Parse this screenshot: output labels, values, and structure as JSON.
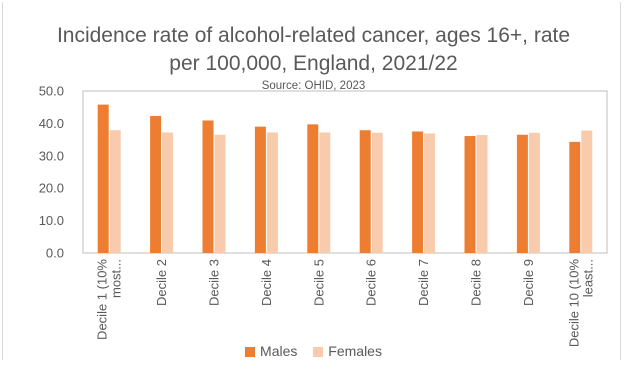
{
  "chart_data": {
    "type": "bar",
    "title_lines": [
      "Incidence rate of alcohol-related cancer, ages 16+, rate",
      "per 100,000, England, 2021/22"
    ],
    "subtitle": "Source: OHID, 2023",
    "categories": [
      [
        "Decile 1 (10%",
        "most..."
      ],
      [
        "Decile 2"
      ],
      [
        "Decile 3"
      ],
      [
        "Decile 4"
      ],
      [
        "Decile 5"
      ],
      [
        "Decile 6"
      ],
      [
        "Decile 7"
      ],
      [
        "Decile 8"
      ],
      [
        "Decile 9"
      ],
      [
        "Decile 10 (10%",
        "least..."
      ]
    ],
    "series": [
      {
        "name": "Males",
        "color": "#ed7d31",
        "values": [
          45.8,
          42.3,
          40.9,
          39.0,
          39.7,
          37.9,
          37.5,
          36.1,
          36.5,
          34.3
        ]
      },
      {
        "name": "Females",
        "color": "#f8cbad",
        "values": [
          37.9,
          37.2,
          36.5,
          37.2,
          37.2,
          37.1,
          36.9,
          36.4,
          37.1,
          37.8
        ]
      }
    ],
    "ylim": [
      0,
      50
    ],
    "yticks": [
      "0.0",
      "10.0",
      "20.0",
      "30.0",
      "40.0",
      "50.0"
    ],
    "legend_position": "bottom",
    "grid": false
  }
}
